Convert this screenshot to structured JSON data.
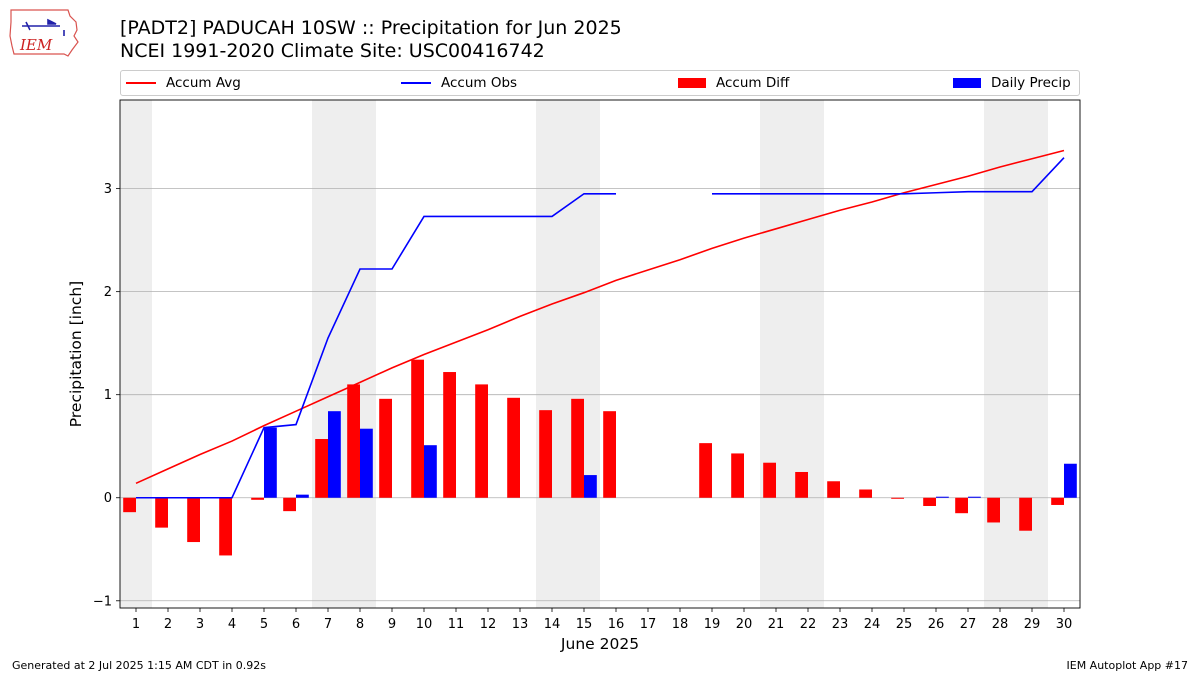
{
  "header": {
    "title_line1": "[PADT2] PADUCAH 10SW :: Precipitation for Jun 2025",
    "title_line2": "NCEI 1991-2020 Climate Site: USC00416742"
  },
  "logo": {
    "text": "IEM",
    "icon": "iem-iowa-logo"
  },
  "footer": {
    "generated": "Generated at 2 Jul 2025 1:15 AM CDT in 0.92s",
    "app": "IEM Autoplot App #17"
  },
  "legend": {
    "accum_avg": "Accum Avg",
    "accum_obs": "Accum Obs",
    "accum_diff": "Accum Diff",
    "daily_precip": "Daily Precip"
  },
  "colors": {
    "avg": "#ff0000",
    "obs": "#0000ff",
    "diff": "#ff0000",
    "daily": "#0000ff",
    "weekend": "#eeeeee",
    "grid": "#b0b0b0"
  },
  "chart_data": {
    "type": "bar",
    "xlabel": "June 2025",
    "ylabel": "Precipitation [inch]",
    "ylim": [
      -1.07,
      3.86
    ],
    "yticks": [
      -1,
      0,
      1,
      2,
      3
    ],
    "xlim": [
      0.5,
      30.5
    ],
    "days": [
      1,
      2,
      3,
      4,
      5,
      6,
      7,
      8,
      9,
      10,
      11,
      12,
      13,
      14,
      15,
      16,
      17,
      18,
      19,
      20,
      21,
      22,
      23,
      24,
      25,
      26,
      27,
      28,
      29,
      30
    ],
    "weekend_days": [
      1,
      7,
      8,
      14,
      15,
      21,
      22,
      28,
      29
    ],
    "grid": true,
    "legend_position": "top",
    "series": [
      {
        "name": "Accum Avg",
        "kind": "line",
        "values": [
          0.14,
          0.28,
          0.42,
          0.55,
          0.7,
          0.84,
          0.98,
          1.12,
          1.26,
          1.39,
          1.51,
          1.63,
          1.76,
          1.88,
          1.99,
          2.11,
          2.21,
          2.31,
          2.42,
          2.52,
          2.61,
          2.7,
          2.79,
          2.87,
          2.96,
          3.04,
          3.12,
          3.21,
          3.29,
          3.37
        ]
      },
      {
        "name": "Accum Obs",
        "kind": "line",
        "values": [
          0.0,
          0.0,
          0.0,
          0.0,
          0.68,
          0.71,
          1.55,
          2.22,
          2.22,
          2.73,
          2.73,
          2.73,
          2.73,
          2.73,
          2.95,
          2.95,
          null,
          null,
          2.95,
          2.95,
          2.95,
          2.95,
          2.95,
          2.95,
          2.95,
          2.96,
          2.97,
          2.97,
          2.97,
          3.3
        ]
      },
      {
        "name": "Accum Diff",
        "kind": "bar",
        "values": [
          -0.14,
          -0.29,
          -0.43,
          -0.56,
          -0.02,
          -0.13,
          0.57,
          1.1,
          0.96,
          1.34,
          1.22,
          1.1,
          0.97,
          0.85,
          0.96,
          0.84,
          null,
          null,
          0.53,
          0.43,
          0.34,
          0.25,
          0.16,
          0.08,
          -0.01,
          -0.08,
          -0.15,
          -0.24,
          -0.32,
          -0.07
        ]
      },
      {
        "name": "Daily Precip",
        "kind": "bar",
        "values": [
          0,
          0,
          0,
          0,
          0.68,
          0.03,
          0.84,
          0.67,
          0,
          0.51,
          0,
          0,
          0,
          0,
          0.22,
          0,
          null,
          null,
          0,
          0,
          0,
          0,
          0,
          0,
          0,
          0.01,
          0.01,
          0,
          0,
          0.33
        ]
      }
    ]
  }
}
